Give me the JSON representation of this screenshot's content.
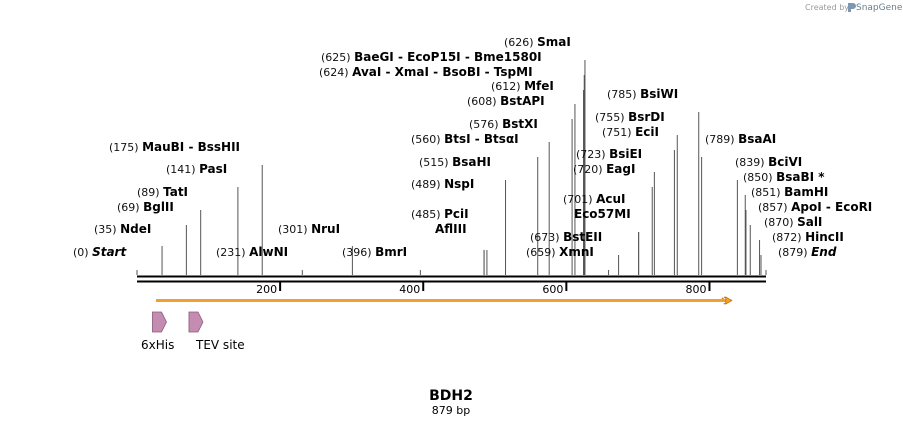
{
  "watermark": {
    "prefix": "Created by",
    "brand": "SnapGene"
  },
  "construct": {
    "name": "BDH2",
    "length_label": "879 bp",
    "length": 879
  },
  "ruler": {
    "ticks": [
      {
        "bp": 200,
        "label": "200"
      },
      {
        "bp": 400,
        "label": "400"
      },
      {
        "bp": 600,
        "label": "600"
      },
      {
        "bp": 800,
        "label": "800"
      }
    ]
  },
  "features": [
    {
      "name": "6xHis",
      "start": 37,
      "end": 54,
      "color": "#c48cb0"
    },
    {
      "name": "TEV site",
      "start": 88,
      "end": 108,
      "color": "#c48cb0"
    }
  ],
  "orf": {
    "start": 35,
    "end": 827,
    "color": "#f0a030"
  },
  "sites": [
    {
      "pos": "(0)",
      "bp": 0,
      "names": [
        "Start"
      ],
      "italic": true
    },
    {
      "pos": "(35)",
      "bp": 35,
      "names": [
        "NdeI"
      ]
    },
    {
      "pos": "(69)",
      "bp": 69,
      "names": [
        "BglII"
      ]
    },
    {
      "pos": "(89)",
      "bp": 89,
      "names": [
        "TatI"
      ]
    },
    {
      "pos": "(141)",
      "bp": 141,
      "names": [
        "PasI"
      ]
    },
    {
      "pos": "(175)",
      "bp": 175,
      "names": [
        "MauBI",
        "- BssHII"
      ]
    },
    {
      "pos": "(231)",
      "bp": 231,
      "names": [
        "AlwNI"
      ]
    },
    {
      "pos": "(301)",
      "bp": 301,
      "names": [
        "NruI"
      ]
    },
    {
      "pos": "(396)",
      "bp": 396,
      "names": [
        "BmrI"
      ]
    },
    {
      "pos": "",
      "bp": 485,
      "names": [
        "AflIII"
      ]
    },
    {
      "pos": "(485)",
      "bp": 485,
      "names": [
        "PciI"
      ]
    },
    {
      "pos": "(489)",
      "bp": 489,
      "names": [
        "NspI"
      ]
    },
    {
      "pos": "(515)",
      "bp": 515,
      "names": [
        "BsaHI"
      ]
    },
    {
      "pos": "(560)",
      "bp": 560,
      "names": [
        "BtsI",
        "- BtsαI"
      ]
    },
    {
      "pos": "(576)",
      "bp": 576,
      "names": [
        "BstXI"
      ]
    },
    {
      "pos": "(608)",
      "bp": 608,
      "names": [
        "BstAPI"
      ]
    },
    {
      "pos": "(612)",
      "bp": 612,
      "names": [
        "MfeI"
      ]
    },
    {
      "pos": "(624)",
      "bp": 624,
      "names": [
        "AvaI",
        "- XmaI",
        "- BsoBI",
        "- TspMI"
      ]
    },
    {
      "pos": "(625)",
      "bp": 625,
      "names": [
        "BaeGI",
        "- EcoP15I",
        "- Bme1580I"
      ]
    },
    {
      "pos": "(626)",
      "bp": 626,
      "names": [
        "SmaI"
      ]
    },
    {
      "pos": "(659)",
      "bp": 659,
      "names": [
        "XmnI"
      ]
    },
    {
      "pos": "(673)",
      "bp": 673,
      "names": [
        "BstEII"
      ]
    },
    {
      "pos": "",
      "bp": 701,
      "names": [
        "Eco57MI"
      ]
    },
    {
      "pos": "(701)",
      "bp": 701,
      "names": [
        "AcuI"
      ]
    },
    {
      "pos": "(720)",
      "bp": 720,
      "names": [
        "EagI"
      ]
    },
    {
      "pos": "(723)",
      "bp": 723,
      "names": [
        "BsiEI"
      ]
    },
    {
      "pos": "(751)",
      "bp": 751,
      "names": [
        "EciI"
      ]
    },
    {
      "pos": "(755)",
      "bp": 755,
      "names": [
        "BsrDI"
      ]
    },
    {
      "pos": "(785)",
      "bp": 785,
      "names": [
        "BsiWI"
      ]
    },
    {
      "pos": "(789)",
      "bp": 789,
      "names": [
        "BsaAI"
      ]
    },
    {
      "pos": "(839)",
      "bp": 839,
      "names": [
        "BciVI"
      ]
    },
    {
      "pos": "(850)",
      "bp": 850,
      "names": [
        "BsaBI *"
      ]
    },
    {
      "pos": "(851)",
      "bp": 851,
      "names": [
        "BamHI"
      ]
    },
    {
      "pos": "(857)",
      "bp": 857,
      "names": [
        "ApoI",
        "- EcoRI"
      ]
    },
    {
      "pos": "(870)",
      "bp": 870,
      "names": [
        "SalI"
      ]
    },
    {
      "pos": "(872)",
      "bp": 872,
      "names": [
        "HincII"
      ]
    },
    {
      "pos": "(879)",
      "bp": 879,
      "names": [
        "End"
      ],
      "italic": true
    }
  ]
}
